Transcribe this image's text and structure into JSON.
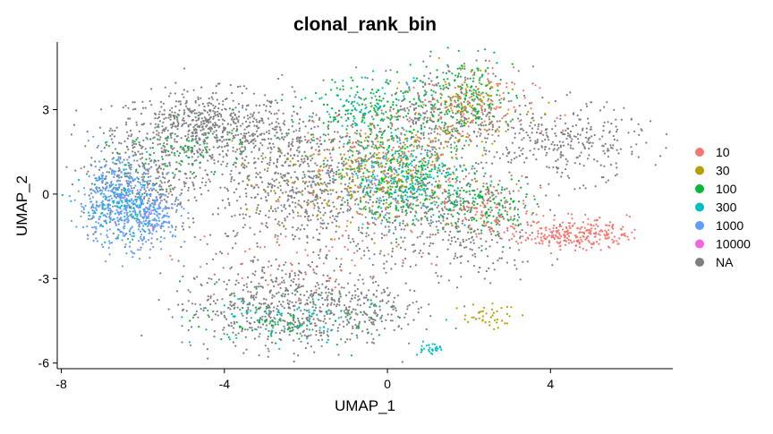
{
  "chart_data": {
    "type": "scatter",
    "title": "clonal_rank_bin",
    "xlabel": "UMAP_1",
    "ylabel": "UMAP_2",
    "xlim": [
      -8.1,
      7.0
    ],
    "ylim": [
      -6.2,
      5.4
    ],
    "x_ticks": [
      {
        "value": -8,
        "label": "-8"
      },
      {
        "value": -4,
        "label": "-4"
      },
      {
        "value": 0,
        "label": "0"
      },
      {
        "value": 4,
        "label": "4"
      }
    ],
    "y_ticks": [
      {
        "value": 3,
        "label": "3"
      },
      {
        "value": 0,
        "label": "0"
      },
      {
        "value": -3,
        "label": "-3"
      },
      {
        "value": -6,
        "label": "-6"
      }
    ],
    "grid": false,
    "legend_position": "right",
    "legend": [
      {
        "label": "10",
        "color": "#F8766D"
      },
      {
        "label": "30",
        "color": "#B79F00"
      },
      {
        "label": "100",
        "color": "#00BA38"
      },
      {
        "label": "300",
        "color": "#00BFC4"
      },
      {
        "label": "1000",
        "color": "#619CFF"
      },
      {
        "label": "10000",
        "color": "#F564E3"
      },
      {
        "label": "NA",
        "color": "#7F7F7F"
      }
    ],
    "series": [
      {
        "name": "NA",
        "color": "#7F7F7F",
        "regions": [
          {
            "cx": -4.5,
            "cy": 2.3,
            "rx": 2.0,
            "ry": 1.2,
            "n": 650
          },
          {
            "cx": -2.0,
            "cy": 0.5,
            "rx": 2.6,
            "ry": 2.5,
            "n": 950
          },
          {
            "cx": -6.0,
            "cy": 0.5,
            "rx": 1.3,
            "ry": 1.6,
            "n": 300
          },
          {
            "cx": -2.5,
            "cy": -4.0,
            "rx": 2.3,
            "ry": 1.4,
            "n": 650
          },
          {
            "cx": 1.5,
            "cy": -1.0,
            "rx": 2.0,
            "ry": 2.0,
            "n": 450
          },
          {
            "cx": 1.5,
            "cy": 2.8,
            "rx": 1.6,
            "ry": 1.5,
            "n": 350
          },
          {
            "cx": 4.3,
            "cy": 1.8,
            "rx": 1.8,
            "ry": 1.2,
            "n": 300
          },
          {
            "cx": -0.3,
            "cy": -4.1,
            "rx": 1.0,
            "ry": 0.9,
            "n": 80
          }
        ]
      },
      {
        "name": "1000",
        "color": "#619CFF",
        "regions": [
          {
            "cx": -6.6,
            "cy": -0.3,
            "rx": 0.9,
            "ry": 1.4,
            "n": 480
          },
          {
            "cx": -5.7,
            "cy": -0.8,
            "rx": 0.7,
            "ry": 0.8,
            "n": 160
          },
          {
            "cx": -0.5,
            "cy": 0.5,
            "rx": 1.5,
            "ry": 1.5,
            "n": 70
          }
        ]
      },
      {
        "name": "300",
        "color": "#00BFC4",
        "regions": [
          {
            "cx": 0.6,
            "cy": 0.5,
            "rx": 1.3,
            "ry": 1.2,
            "n": 220
          },
          {
            "cx": -0.3,
            "cy": 3.0,
            "rx": 1.3,
            "ry": 1.0,
            "n": 90
          },
          {
            "cx": -6.5,
            "cy": -0.5,
            "rx": 0.9,
            "ry": 1.1,
            "n": 90
          },
          {
            "cx": -2.5,
            "cy": -4.5,
            "rx": 2.0,
            "ry": 0.8,
            "n": 70
          },
          {
            "cx": 1.0,
            "cy": -5.5,
            "rx": 0.3,
            "ry": 0.2,
            "n": 30
          }
        ]
      },
      {
        "name": "100",
        "color": "#00BA38",
        "regions": [
          {
            "cx": 0.5,
            "cy": 0.5,
            "rx": 1.5,
            "ry": 1.3,
            "n": 260
          },
          {
            "cx": 1.8,
            "cy": 3.5,
            "rx": 1.2,
            "ry": 1.2,
            "n": 160
          },
          {
            "cx": -0.5,
            "cy": 3.0,
            "rx": 1.4,
            "ry": 1.2,
            "n": 150
          },
          {
            "cx": 2.5,
            "cy": -0.5,
            "rx": 1.0,
            "ry": 1.0,
            "n": 120
          },
          {
            "cx": -2.5,
            "cy": -4.5,
            "rx": 2.0,
            "ry": 0.8,
            "n": 80
          },
          {
            "cx": -5.0,
            "cy": 1.5,
            "rx": 1.5,
            "ry": 1.0,
            "n": 80
          }
        ]
      },
      {
        "name": "30",
        "color": "#B79F00",
        "regions": [
          {
            "cx": 0.0,
            "cy": 1.0,
            "rx": 1.8,
            "ry": 1.5,
            "n": 160
          },
          {
            "cx": 2.0,
            "cy": 3.0,
            "rx": 1.3,
            "ry": 1.3,
            "n": 100
          },
          {
            "cx": -1.5,
            "cy": 0.0,
            "rx": 2.0,
            "ry": 1.5,
            "n": 80
          },
          {
            "cx": 2.5,
            "cy": -4.3,
            "rx": 0.6,
            "ry": 0.4,
            "n": 40
          }
        ]
      },
      {
        "name": "10",
        "color": "#F8766D",
        "regions": [
          {
            "cx": 4.6,
            "cy": -1.4,
            "rx": 1.2,
            "ry": 0.5,
            "n": 260
          },
          {
            "cx": 2.5,
            "cy": -0.5,
            "rx": 1.2,
            "ry": 1.0,
            "n": 110
          },
          {
            "cx": 0.0,
            "cy": 1.0,
            "rx": 2.0,
            "ry": 1.8,
            "n": 130
          },
          {
            "cx": 2.0,
            "cy": 3.0,
            "rx": 1.5,
            "ry": 1.3,
            "n": 110
          },
          {
            "cx": -2.0,
            "cy": -2.0,
            "rx": 2.5,
            "ry": 2.0,
            "n": 80
          }
        ]
      },
      {
        "name": "10000",
        "color": "#F564E3",
        "regions": [
          {
            "cx": -6.2,
            "cy": -0.6,
            "rx": 0.6,
            "ry": 0.6,
            "n": 5
          }
        ]
      }
    ]
  }
}
